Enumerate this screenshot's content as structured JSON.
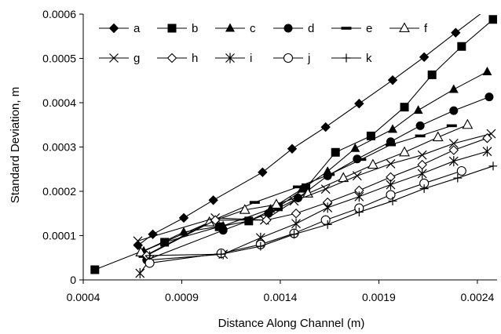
{
  "chart_data": {
    "type": "line",
    "xlabel": "Distance Along Channel (m)",
    "ylabel": "Standard Deviation, m",
    "xlim": [
      0.0004,
      0.0025
    ],
    "ylim": [
      0,
      0.0006
    ],
    "x_ticks": [
      "0.0004",
      "0.0009",
      "0.0014",
      "0.0019",
      "0.0024"
    ],
    "y_ticks": [
      "0",
      "0.0001",
      "0.0002",
      "0.0003",
      "0.0004",
      "0.0005",
      "0.0006"
    ],
    "grid": false,
    "legend_position": "top-left",
    "series": [
      {
        "name": "a",
        "marker": "diamond-filled",
        "points": [
          [
            0.000678,
            7.8e-05
          ],
          [
            0.000753,
            0.000103
          ],
          [
            0.00091,
            0.00014
          ],
          [
            0.00106,
            0.00018
          ],
          [
            0.00131,
            0.000243
          ],
          [
            0.00146,
            0.000296
          ],
          [
            0.00163,
            0.000345
          ],
          [
            0.0018,
            0.000398
          ],
          [
            0.00197,
            0.000451
          ],
          [
            0.00213,
            0.000503
          ],
          [
            0.00229,
            0.000558
          ],
          [
            0.00245,
            0.000612
          ]
        ]
      },
      {
        "name": "b",
        "marker": "square-filled",
        "points": [
          [
            0.000459,
            2.3e-05
          ],
          [
            0.000813,
            8.5e-05
          ],
          [
            0.00109,
            0.00012
          ],
          [
            0.00124,
            0.000133
          ],
          [
            0.00139,
            0.000165
          ],
          [
            0.00153,
            0.000208
          ],
          [
            0.00168,
            0.000288
          ],
          [
            0.00186,
            0.000325
          ],
          [
            0.00203,
            0.00039
          ],
          [
            0.00217,
            0.000463
          ],
          [
            0.00232,
            0.000527
          ],
          [
            0.00248,
            0.000588
          ]
        ]
      },
      {
        "name": "c",
        "marker": "triangle-filled",
        "points": [
          [
            0.000707,
            6.5e-05
          ],
          [
            0.00091,
            0.000108
          ],
          [
            0.00111,
            0.000122
          ],
          [
            0.00135,
            0.00016
          ],
          [
            0.00151,
            0.000205
          ],
          [
            0.00164,
            0.000245
          ],
          [
            0.00178,
            0.000297
          ],
          [
            0.00197,
            0.00034
          ],
          [
            0.0021,
            0.000383
          ],
          [
            0.00228,
            0.00043
          ],
          [
            0.00245,
            0.00047
          ]
        ]
      },
      {
        "name": "d",
        "marker": "circle-filled",
        "points": [
          [
            0.000722,
            4.5e-05
          ],
          [
            0.00111,
            0.000112
          ],
          [
            0.00134,
            0.00015
          ],
          [
            0.00149,
            0.000185
          ],
          [
            0.00164,
            0.000235
          ],
          [
            0.00179,
            0.000273
          ],
          [
            0.00196,
            0.000312
          ],
          [
            0.00211,
            0.000348
          ],
          [
            0.00228,
            0.000382
          ],
          [
            0.00246,
            0.000413
          ]
        ]
      },
      {
        "name": "e",
        "marker": "dash",
        "points": [
          [
            0.000707,
            5.3e-05
          ],
          [
            0.00106,
            0.000135
          ],
          [
            0.00127,
            0.000175
          ],
          [
            0.00149,
            0.00021
          ],
          [
            0.00165,
            0.000238
          ],
          [
            0.00181,
            0.000272
          ],
          [
            0.00196,
            0.000305
          ],
          [
            0.00211,
            0.000325
          ],
          [
            0.00227,
            0.000348
          ]
        ]
      },
      {
        "name": "f",
        "marker": "triangle-open",
        "points": [
          [
            0.000692,
            6.2e-05
          ],
          [
            0.00104,
            0.00013
          ],
          [
            0.00122,
            0.000158
          ],
          [
            0.00138,
            0.00017
          ],
          [
            0.00154,
            0.000195
          ],
          [
            0.00172,
            0.00023
          ],
          [
            0.00187,
            0.00026
          ],
          [
            0.00203,
            0.000288
          ],
          [
            0.0022,
            0.000322
          ],
          [
            0.00235,
            0.00035
          ]
        ]
      },
      {
        "name": "g",
        "marker": "x",
        "points": [
          [
            0.000677,
            8.8e-05
          ],
          [
            0.00107,
            0.00014
          ],
          [
            0.00132,
            0.000135
          ],
          [
            0.00147,
            0.000178
          ],
          [
            0.00163,
            0.000205
          ],
          [
            0.00179,
            0.000235
          ],
          [
            0.00196,
            0.000262
          ],
          [
            0.00212,
            0.000282
          ],
          [
            0.00228,
            0.000308
          ],
          [
            0.00247,
            0.00033
          ]
        ]
      },
      {
        "name": "h",
        "marker": "diamond-open",
        "points": [
          [
            0.000722,
            5.5e-05
          ],
          [
            0.00107,
            0.000135
          ],
          [
            0.00133,
            0.000135
          ],
          [
            0.00148,
            0.00015
          ],
          [
            0.00164,
            0.000175
          ],
          [
            0.0018,
            0.000202
          ],
          [
            0.00196,
            0.000232
          ],
          [
            0.00212,
            0.00026
          ],
          [
            0.00228,
            0.000293
          ],
          [
            0.00245,
            0.00032
          ]
        ]
      },
      {
        "name": "i",
        "marker": "asterisk",
        "points": [
          [
            0.000688,
            1.5e-05
          ],
          [
            0.000737,
            4.5e-05
          ],
          [
            0.00111,
            5.8e-05
          ],
          [
            0.0013,
            9.5e-05
          ],
          [
            0.00148,
            0.000127
          ],
          [
            0.00164,
            0.000163
          ],
          [
            0.0018,
            0.000188
          ],
          [
            0.00196,
            0.000215
          ],
          [
            0.00212,
            0.00024
          ],
          [
            0.00228,
            0.000268
          ],
          [
            0.00245,
            0.00029
          ]
        ]
      },
      {
        "name": "j",
        "marker": "circle-open",
        "points": [
          [
            0.000737,
            3.8e-05
          ],
          [
            0.0011,
            6e-05
          ],
          [
            0.0013,
            8e-05
          ],
          [
            0.00147,
            0.000105
          ],
          [
            0.00163,
            0.000135
          ],
          [
            0.0018,
            0.000162
          ],
          [
            0.00196,
            0.000192
          ],
          [
            0.00213,
            0.000218
          ],
          [
            0.00232,
            0.000246
          ]
        ]
      },
      {
        "name": "k",
        "marker": "plus",
        "points": [
          [
            0.000737,
            5.5e-05
          ],
          [
            0.0011,
            5.8e-05
          ],
          [
            0.0013,
            7.6e-05
          ],
          [
            0.00147,
            0.000103
          ],
          [
            0.00164,
            0.000125
          ],
          [
            0.0018,
            0.000153
          ],
          [
            0.00197,
            0.000178
          ],
          [
            0.00213,
            0.000206
          ],
          [
            0.0023,
            0.00023
          ],
          [
            0.00248,
            0.000257
          ]
        ]
      }
    ]
  }
}
